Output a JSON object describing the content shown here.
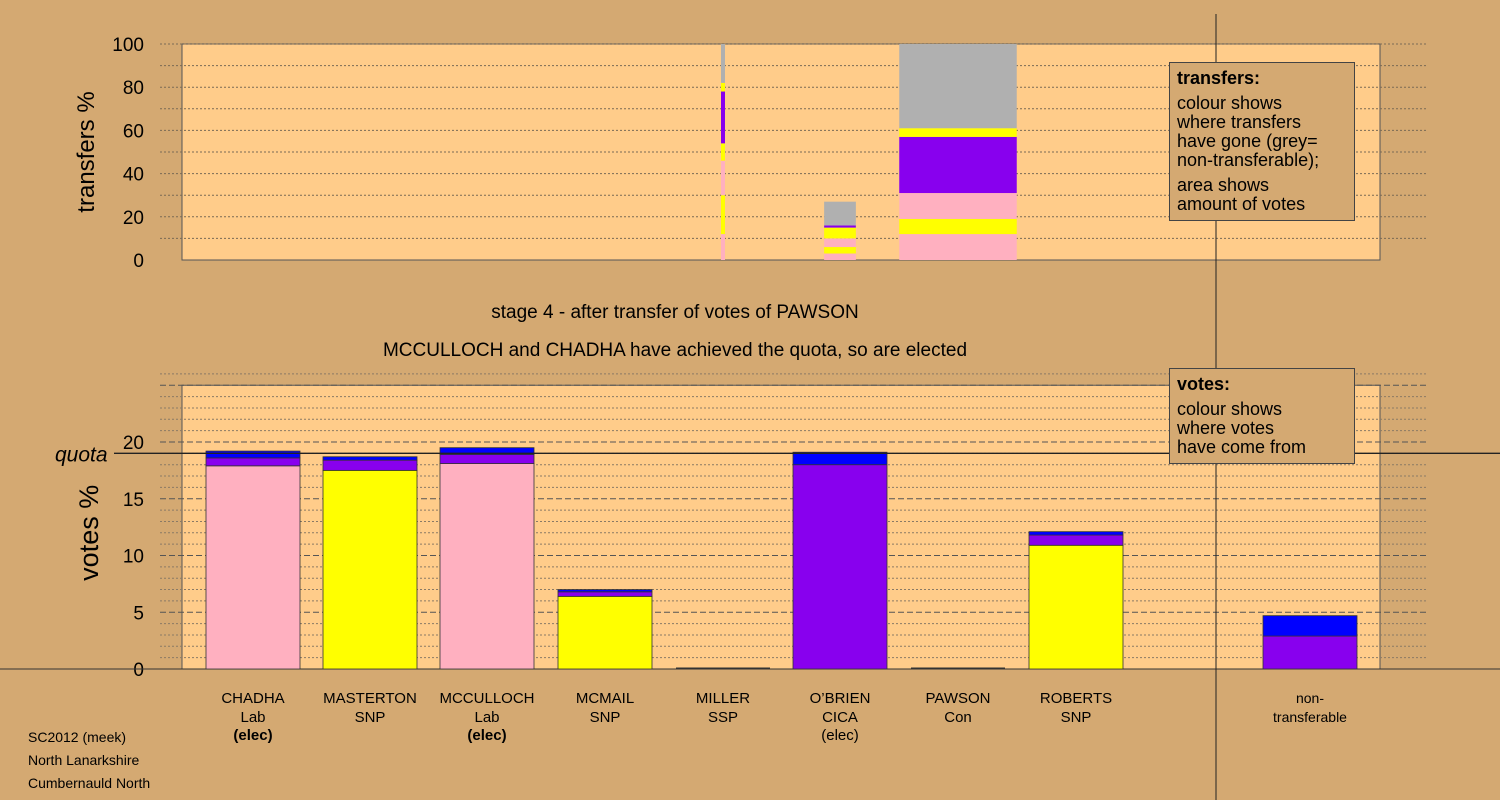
{
  "titles": {
    "stage": "stage 4 - after transfer of votes of PAWSON",
    "elected": "MCCULLOCH and CHADHA have achieved the quota, so are elected"
  },
  "footer": {
    "line1": "SC2012 (meek)",
    "line2": "North Lanarkshire",
    "line3": "Cumbernauld North"
  },
  "legend_transfers": {
    "title": "transfers:",
    "lines": [
      "colour shows",
      "where transfers",
      "have gone (grey=",
      "non-transferable);"
    ],
    "lines2": [
      "area shows",
      "amount of votes"
    ]
  },
  "legend_votes": {
    "title": "votes:",
    "lines": [
      "colour shows",
      "where votes",
      "have come from"
    ]
  },
  "colors": {
    "Lab": "#FFB0C0",
    "SNP": "#FFFF00",
    "CICA": "#8800EE",
    "Con": "#0000FF",
    "SSP": "#FF0000",
    "nontransferable": "#B0B0B0",
    "plot_bg": "#FFCC8A",
    "page_bg": "#D4A972"
  },
  "chart_data": [
    {
      "type": "bar",
      "panel": "transfers",
      "ylabel": "transfers %",
      "ylim": [
        0,
        100
      ],
      "yticks": [
        0,
        20,
        40,
        60,
        80,
        100
      ],
      "columns": [
        {
          "category": "MILLER",
          "width_pct": 0.8,
          "segments": [
            {
              "party": "Lab",
              "from": 0,
              "to": 12
            },
            {
              "party": "SNP",
              "from": 12,
              "to": 30
            },
            {
              "party": "Lab",
              "from": 30,
              "to": 46
            },
            {
              "party": "SNP",
              "from": 46,
              "to": 54
            },
            {
              "party": "CICA",
              "from": 54,
              "to": 78
            },
            {
              "party": "SNP",
              "from": 78,
              "to": 82
            },
            {
              "party": "nontransferable",
              "from": 82,
              "to": 100
            }
          ]
        },
        {
          "category": "O'BRIEN",
          "width_pct": 27,
          "segments": [
            {
              "party": "Lab",
              "from": 0,
              "to": 3
            },
            {
              "party": "SNP",
              "from": 3,
              "to": 6
            },
            {
              "party": "Lab",
              "from": 6,
              "to": 10
            },
            {
              "party": "SNP",
              "from": 10,
              "to": 15
            },
            {
              "party": "CICA",
              "from": 15,
              "to": 16
            },
            {
              "party": "nontransferable",
              "from": 16,
              "to": 27
            }
          ]
        },
        {
          "category": "PAWSON",
          "width_pct": 100,
          "segments": [
            {
              "party": "Lab",
              "from": 0,
              "to": 12
            },
            {
              "party": "SNP",
              "from": 12,
              "to": 19
            },
            {
              "party": "Lab",
              "from": 19,
              "to": 31
            },
            {
              "party": "CICA",
              "from": 31,
              "to": 57
            },
            {
              "party": "SNP",
              "from": 57,
              "to": 61
            },
            {
              "party": "nontransferable",
              "from": 61,
              "to": 100
            }
          ]
        }
      ]
    },
    {
      "type": "bar",
      "panel": "votes",
      "ylabel": "votes %",
      "ylim": [
        0,
        25
      ],
      "yticks": [
        0,
        5,
        10,
        15,
        20
      ],
      "quota": 19,
      "quota_label": "quota",
      "candidates": [
        {
          "name": "CHADHA",
          "party": "Lab",
          "status": "(elec)",
          "bold_status": true,
          "segments": [
            {
              "party": "Lab",
              "value": 17.9
            },
            {
              "party": "CICA",
              "value": 0.7
            },
            {
              "party": "Con",
              "value": 0.6
            }
          ]
        },
        {
          "name": "MASTERTON",
          "party": "SNP",
          "status": "",
          "bold_status": false,
          "segments": [
            {
              "party": "SNP",
              "value": 17.5
            },
            {
              "party": "CICA",
              "value": 0.9
            },
            {
              "party": "Con",
              "value": 0.3
            }
          ]
        },
        {
          "name": "MCCULLOCH",
          "party": "Lab",
          "status": "(elec)",
          "bold_status": true,
          "segments": [
            {
              "party": "Lab",
              "value": 18.1
            },
            {
              "party": "CICA",
              "value": 0.8
            },
            {
              "party": "Con",
              "value": 0.6
            }
          ]
        },
        {
          "name": "MCMAIL",
          "party": "SNP",
          "status": "",
          "bold_status": false,
          "segments": [
            {
              "party": "SNP",
              "value": 6.4
            },
            {
              "party": "CICA",
              "value": 0.4
            },
            {
              "party": "Con",
              "value": 0.2
            }
          ]
        },
        {
          "name": "MILLER",
          "party": "SSP",
          "status": "",
          "bold_status": false,
          "segments": []
        },
        {
          "name": "O’BRIEN",
          "party": "CICA",
          "status": "(elec)",
          "bold_status": false,
          "segments": [
            {
              "party": "CICA",
              "value": 18.0
            },
            {
              "party": "Con",
              "value": 1.1
            }
          ]
        },
        {
          "name": "PAWSON",
          "party": "Con",
          "status": "",
          "bold_status": false,
          "segments": []
        },
        {
          "name": "ROBERTS",
          "party": "SNP",
          "status": "",
          "bold_status": false,
          "segments": [
            {
              "party": "SNP",
              "value": 10.9
            },
            {
              "party": "CICA",
              "value": 0.9
            },
            {
              "party": "Con",
              "value": 0.3
            }
          ]
        }
      ],
      "nontransferable": {
        "label_line1": "non-",
        "label_line2": "transferable",
        "segments": [
          {
            "party": "CICA",
            "value": 2.9
          },
          {
            "party": "Con",
            "value": 1.8
          }
        ]
      }
    }
  ]
}
